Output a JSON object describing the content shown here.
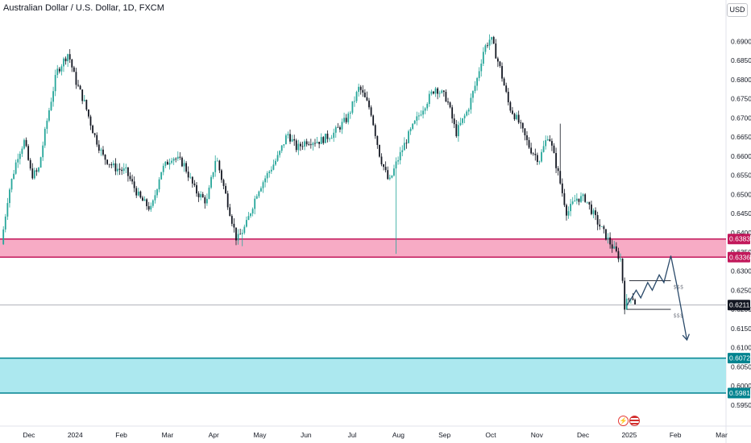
{
  "title": "Australian Dollar / U.S. Dollar, 1D, FXCM",
  "currency_label": "USD",
  "colors": {
    "up": "#26a69a",
    "down": "#131722",
    "sell_zone": "#f48fb1",
    "sell_zone_border": "#c2185b",
    "buy_zone": "#a8e7ee",
    "buy_zone_border": "#00838f",
    "arrow": "#2b4a6a"
  },
  "icons": [
    "lightning-icon",
    "us-flag-icon"
  ],
  "chart_data": {
    "type": "candlestick",
    "ylim": [
      0.5935,
      0.6945
    ],
    "y_ticks": [
      "0.69000",
      "0.68500",
      "0.68000",
      "0.67500",
      "0.67000",
      "0.66500",
      "0.66000",
      "0.65500",
      "0.65000",
      "0.64500",
      "0.64000",
      "0.63500",
      "0.63000",
      "0.62500",
      "0.62000",
      "0.61500",
      "0.61000",
      "0.60500",
      "0.60000",
      "0.59500"
    ],
    "x_ticks": [
      {
        "label": "Dec",
        "t": 0.0
      },
      {
        "label": "2024",
        "t": 1.0
      },
      {
        "label": "Feb",
        "t": 2.0
      },
      {
        "label": "Mar",
        "t": 3.0
      },
      {
        "label": "Apr",
        "t": 4.0
      },
      {
        "label": "May",
        "t": 5.0
      },
      {
        "label": "Jun",
        "t": 6.0
      },
      {
        "label": "Jul",
        "t": 7.0
      },
      {
        "label": "Aug",
        "t": 8.0
      },
      {
        "label": "Sep",
        "t": 9.0
      },
      {
        "label": "Oct",
        "t": 10.0
      },
      {
        "label": "Nov",
        "t": 11.0
      },
      {
        "label": "Dec",
        "t": 12.0
      },
      {
        "label": "2025",
        "t": 13.0
      },
      {
        "label": "Feb",
        "t": 14.0
      },
      {
        "label": "Mar",
        "t": 15.0
      }
    ],
    "price_path": [
      [
        -0.6,
        0.637
      ],
      [
        -0.45,
        0.65
      ],
      [
        -0.25,
        0.66
      ],
      [
        -0.1,
        0.664
      ],
      [
        0.05,
        0.655
      ],
      [
        0.2,
        0.656
      ],
      [
        0.4,
        0.67
      ],
      [
        0.6,
        0.682
      ],
      [
        0.85,
        0.687
      ],
      [
        1.0,
        0.68
      ],
      [
        1.2,
        0.674
      ],
      [
        1.4,
        0.666
      ],
      [
        1.6,
        0.66
      ],
      [
        1.85,
        0.657
      ],
      [
        2.1,
        0.656
      ],
      [
        2.4,
        0.649
      ],
      [
        2.65,
        0.646
      ],
      [
        2.85,
        0.656
      ],
      [
        3.1,
        0.66
      ],
      [
        3.35,
        0.658
      ],
      [
        3.6,
        0.651
      ],
      [
        3.85,
        0.648
      ],
      [
        4.05,
        0.66
      ],
      [
        4.3,
        0.648
      ],
      [
        4.5,
        0.638
      ],
      [
        4.7,
        0.642
      ],
      [
        4.95,
        0.651
      ],
      [
        5.15,
        0.655
      ],
      [
        5.4,
        0.66
      ],
      [
        5.6,
        0.666
      ],
      [
        5.8,
        0.662
      ],
      [
        6.0,
        0.664
      ],
      [
        6.3,
        0.664
      ],
      [
        6.6,
        0.666
      ],
      [
        6.9,
        0.67
      ],
      [
        7.15,
        0.678
      ],
      [
        7.4,
        0.672
      ],
      [
        7.6,
        0.66
      ],
      [
        7.8,
        0.653
      ],
      [
        7.95,
        0.658
      ],
      [
        8.2,
        0.665
      ],
      [
        8.5,
        0.672
      ],
      [
        8.8,
        0.678
      ],
      [
        9.05,
        0.675
      ],
      [
        9.25,
        0.666
      ],
      [
        9.5,
        0.672
      ],
      [
        9.7,
        0.68
      ],
      [
        9.85,
        0.688
      ],
      [
        10.0,
        0.691
      ],
      [
        10.2,
        0.683
      ],
      [
        10.4,
        0.673
      ],
      [
        10.6,
        0.669
      ],
      [
        10.85,
        0.662
      ],
      [
        11.05,
        0.659
      ],
      [
        11.25,
        0.666
      ],
      [
        11.45,
        0.656
      ],
      [
        11.65,
        0.645
      ],
      [
        11.85,
        0.649
      ],
      [
        12.05,
        0.649
      ],
      [
        12.3,
        0.643
      ],
      [
        12.5,
        0.639
      ],
      [
        12.7,
        0.635
      ],
      [
        12.82,
        0.633
      ],
      [
        12.9,
        0.621
      ],
      [
        13.05,
        0.624
      ],
      [
        13.15,
        0.621
      ]
    ],
    "spikes": [
      {
        "t": 4.6,
        "low": 0.6365
      },
      {
        "t": 7.95,
        "low": 0.6345
      },
      {
        "t": 11.5,
        "high": 0.6685
      }
    ],
    "zones": [
      {
        "name": "sell-zone",
        "top": 0.63838,
        "bottom": 0.63363,
        "top_label": "0.63838",
        "bottom_label": "0.63363"
      },
      {
        "name": "buy-zone",
        "top": 0.60725,
        "bottom": 0.59813,
        "top_label": "0.60725",
        "bottom_label": "0.59813"
      }
    ],
    "current_price": {
      "value": 0.62112,
      "label": "0.62112"
    },
    "projection": [
      [
        12.95,
        0.621
      ],
      [
        13.05,
        0.623
      ],
      [
        13.15,
        0.625
      ],
      [
        13.25,
        0.623
      ],
      [
        13.4,
        0.627
      ],
      [
        13.5,
        0.625
      ],
      [
        13.65,
        0.629
      ],
      [
        13.75,
        0.627
      ],
      [
        13.9,
        0.634
      ],
      [
        14.02,
        0.627
      ],
      [
        14.25,
        0.612
      ]
    ],
    "liquidity_marks": [
      {
        "label": "$$$",
        "value": 0.6275,
        "t0": 13.0,
        "t1": 13.9
      },
      {
        "label": "$$$",
        "value": 0.62,
        "t0": 12.95,
        "t1": 13.9
      }
    ]
  }
}
